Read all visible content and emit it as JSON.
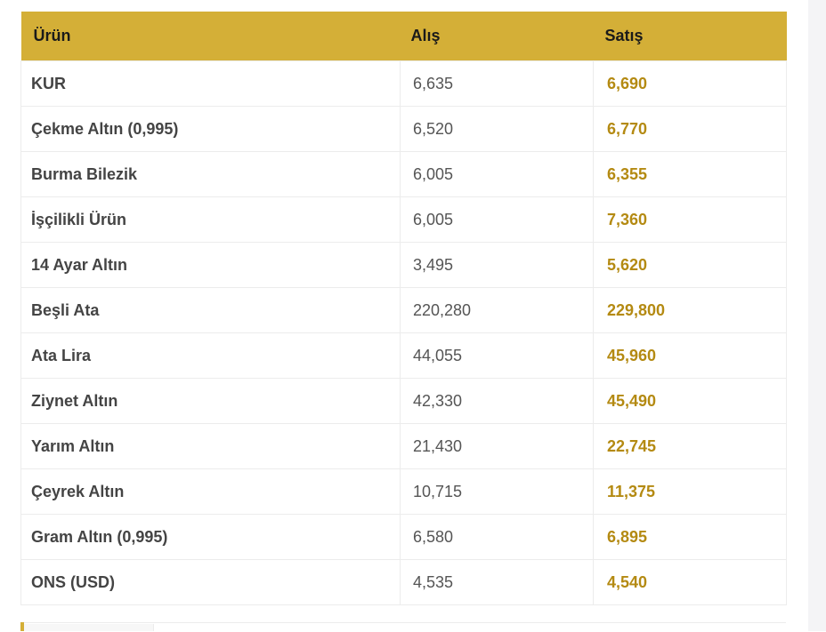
{
  "table": {
    "headers": {
      "product": "Ürün",
      "buy": "Alış",
      "sell": "Satış"
    },
    "rows": [
      {
        "name": "KUR",
        "buy": "6,635",
        "sell": "6,690"
      },
      {
        "name": "Çekme Altın (0,995)",
        "buy": "6,520",
        "sell": "6,770"
      },
      {
        "name": "Burma Bilezik",
        "buy": "6,005",
        "sell": "6,355"
      },
      {
        "name": "İşçilikli Ürün",
        "buy": "6,005",
        "sell": "7,360"
      },
      {
        "name": "14 Ayar Altın",
        "buy": "3,495",
        "sell": "5,620"
      },
      {
        "name": "Beşli Ata",
        "buy": "220,280",
        "sell": "229,800"
      },
      {
        "name": "Ata Lira",
        "buy": "44,055",
        "sell": "45,960"
      },
      {
        "name": "Ziynet Altın",
        "buy": "42,330",
        "sell": "45,490"
      },
      {
        "name": "Yarım Altın",
        "buy": "21,430",
        "sell": "22,745"
      },
      {
        "name": "Çeyrek Altın",
        "buy": "10,715",
        "sell": "11,375"
      },
      {
        "name": "Gram Altın (0,995)",
        "buy": "6,580",
        "sell": "6,895"
      },
      {
        "name": "ONS (USD)",
        "buy": "4,535",
        "sell": "4,540"
      }
    ]
  },
  "colors": {
    "header_bg": "#d4af37",
    "sell_text": "#b48a12",
    "name_text": "#444444",
    "buy_text": "#555555",
    "border": "#ececec"
  }
}
